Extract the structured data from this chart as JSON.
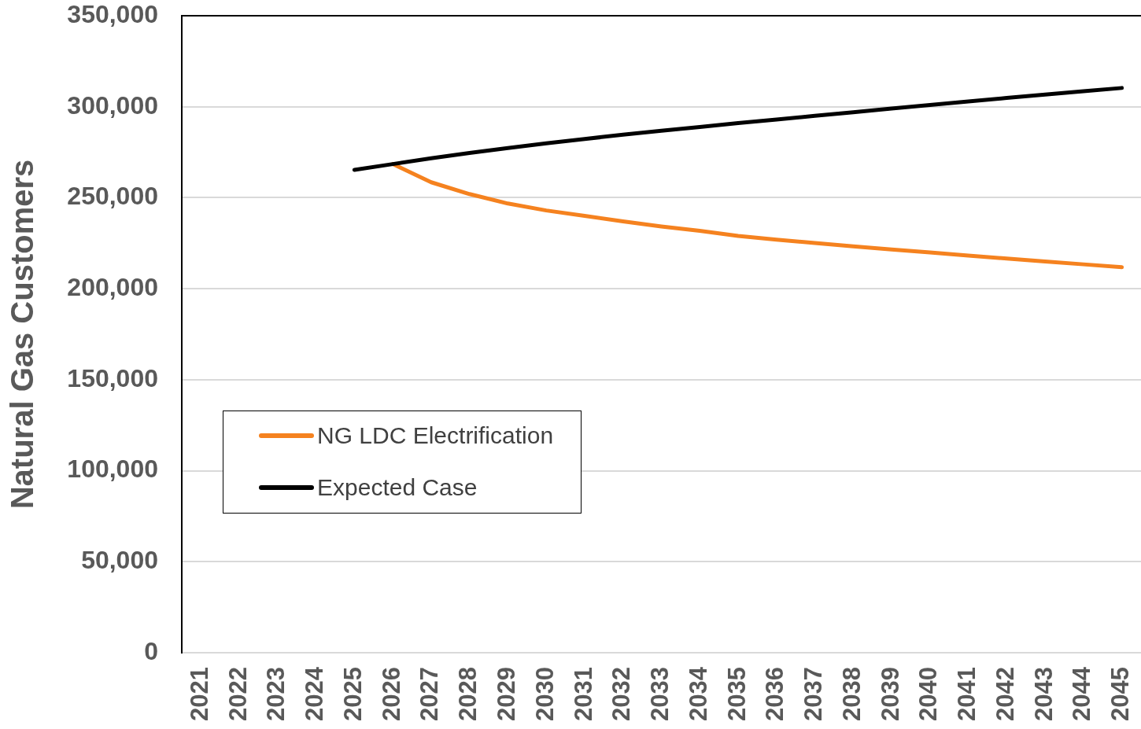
{
  "chart_data": {
    "type": "line",
    "ylabel": "Natural Gas Customers",
    "categories": [
      "2021",
      "2022",
      "2023",
      "2024",
      "2025",
      "2026",
      "2027",
      "2028",
      "2029",
      "2030",
      "2031",
      "2032",
      "2033",
      "2034",
      "2035",
      "2036",
      "2037",
      "2038",
      "2039",
      "2040",
      "2041",
      "2042",
      "2043",
      "2044",
      "2045"
    ],
    "series": [
      {
        "name": "NG LDC Electrification",
        "color": "#f5821f",
        "values": [
          null,
          null,
          null,
          null,
          null,
          268500,
          258500,
          252000,
          246800,
          243000,
          240000,
          237000,
          234200,
          231800,
          229000,
          227000,
          225100,
          223300,
          221600,
          219900,
          218200,
          216600,
          215000,
          213400,
          211800
        ]
      },
      {
        "name": "Expected Case",
        "color": "#000000",
        "values": [
          null,
          null,
          null,
          null,
          265300,
          268500,
          271700,
          274600,
          277300,
          279900,
          282300,
          284600,
          286800,
          288900,
          291000,
          293000,
          295000,
          297000,
          299000,
          301000,
          302900,
          304800,
          306700,
          308500,
          310300
        ]
      }
    ],
    "ylim": [
      0,
      350000
    ],
    "yticks": [
      0,
      {
        "value": 50000,
        "label": "50,000"
      },
      {
        "value": 100000,
        "label": "100,000"
      },
      {
        "value": 150000,
        "label": "150,000"
      },
      {
        "value": 200000,
        "label": "200,000"
      },
      {
        "value": 250000,
        "label": "250,000"
      },
      {
        "value": 300000,
        "label": "300,000"
      },
      {
        "value": 350000,
        "label": "350,000"
      }
    ],
    "grid": "y",
    "legend": "bottom left",
    "marker": "none",
    "line_style": "solid"
  }
}
